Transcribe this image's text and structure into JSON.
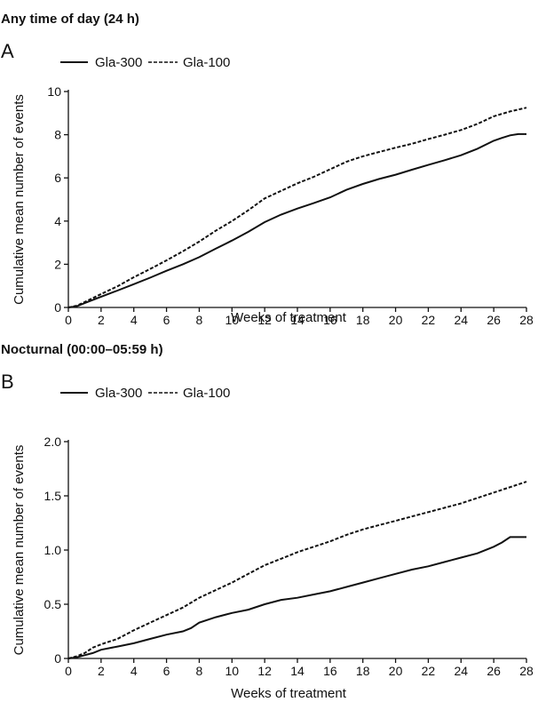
{
  "chart_data": [
    {
      "type": "line",
      "heading": "Any time of day (24 h)",
      "panel": "A",
      "xlabel": "Weeks of treatment",
      "ylabel": "Cumulative mean number of events",
      "xlim": [
        0,
        28
      ],
      "ylim": [
        0,
        10
      ],
      "xticks": [
        0,
        2,
        4,
        6,
        8,
        10,
        12,
        14,
        16,
        18,
        20,
        22,
        24,
        26,
        28
      ],
      "yticks": [
        0,
        2,
        4,
        6,
        8,
        10
      ],
      "ytick_labels": [
        "0",
        "2",
        "4",
        "6",
        "8",
        "10"
      ],
      "legend_position": "top-left",
      "grid": false,
      "series": [
        {
          "name": "Gla-300",
          "style": "solid",
          "x": [
            0,
            0.5,
            1,
            2,
            3,
            4,
            5,
            6,
            7,
            8,
            9,
            10,
            11,
            12,
            13,
            14,
            15,
            16,
            17,
            18,
            19,
            20,
            21,
            22,
            23,
            24,
            25,
            26,
            26.5,
            27,
            27.5,
            28
          ],
          "y": [
            0,
            0.05,
            0.2,
            0.5,
            0.78,
            1.08,
            1.38,
            1.7,
            2.0,
            2.33,
            2.72,
            3.1,
            3.5,
            3.95,
            4.3,
            4.58,
            4.83,
            5.1,
            5.45,
            5.72,
            5.95,
            6.15,
            6.38,
            6.6,
            6.82,
            7.05,
            7.35,
            7.72,
            7.85,
            7.97,
            8.03,
            8.03
          ]
        },
        {
          "name": "Gla-100",
          "style": "dashed",
          "x": [
            0,
            0.5,
            1,
            2,
            3,
            4,
            5,
            6,
            7,
            8,
            9,
            10,
            11,
            12,
            13,
            14,
            15,
            16,
            17,
            18,
            19,
            20,
            21,
            22,
            23,
            24,
            25,
            26,
            27,
            28
          ],
          "y": [
            0,
            0.08,
            0.25,
            0.62,
            0.98,
            1.4,
            1.78,
            2.18,
            2.6,
            3.05,
            3.55,
            4.0,
            4.5,
            5.05,
            5.4,
            5.75,
            6.05,
            6.4,
            6.75,
            7.0,
            7.2,
            7.4,
            7.58,
            7.8,
            8.0,
            8.22,
            8.5,
            8.85,
            9.08,
            9.25
          ]
        }
      ]
    },
    {
      "type": "line",
      "heading": "Nocturnal (00:00–05:59 h)",
      "panel": "B",
      "xlabel": "Weeks of treatment",
      "ylabel": "Cumulative mean number of events",
      "xlim": [
        0,
        28
      ],
      "ylim": [
        0,
        2
      ],
      "xticks": [
        0,
        2,
        4,
        6,
        8,
        10,
        12,
        14,
        16,
        18,
        20,
        22,
        24,
        26,
        28
      ],
      "yticks": [
        0,
        0.5,
        1,
        1.5,
        2
      ],
      "ytick_labels": [
        "0",
        "0.5",
        "1.0",
        "1.5",
        "2.0"
      ],
      "legend_position": "top-left",
      "grid": false,
      "series": [
        {
          "name": "Gla-300",
          "style": "solid",
          "x": [
            0,
            0.5,
            1,
            1.5,
            2,
            3,
            4,
            5,
            6,
            7,
            7.5,
            8,
            9,
            10,
            11,
            12,
            13,
            14,
            15,
            16,
            17,
            18,
            19,
            20,
            21,
            22,
            23,
            24,
            25,
            26,
            26.5,
            27,
            28
          ],
          "y": [
            0,
            0.01,
            0.03,
            0.05,
            0.08,
            0.11,
            0.14,
            0.18,
            0.22,
            0.25,
            0.28,
            0.33,
            0.38,
            0.42,
            0.45,
            0.5,
            0.54,
            0.56,
            0.59,
            0.62,
            0.66,
            0.7,
            0.74,
            0.78,
            0.82,
            0.85,
            0.89,
            0.93,
            0.97,
            1.03,
            1.07,
            1.12,
            1.12
          ]
        },
        {
          "name": "Gla-100",
          "style": "dashed",
          "x": [
            0,
            0.5,
            1,
            1.5,
            2,
            3,
            4,
            5,
            6,
            7,
            8,
            9,
            10,
            11,
            12,
            13,
            14,
            15,
            16,
            17,
            18,
            19,
            20,
            21,
            22,
            23,
            24,
            25,
            26,
            27,
            28
          ],
          "y": [
            0,
            0.02,
            0.05,
            0.1,
            0.13,
            0.18,
            0.26,
            0.33,
            0.4,
            0.47,
            0.56,
            0.63,
            0.7,
            0.78,
            0.86,
            0.92,
            0.98,
            1.03,
            1.08,
            1.14,
            1.19,
            1.23,
            1.27,
            1.31,
            1.35,
            1.39,
            1.43,
            1.48,
            1.53,
            1.58,
            1.63
          ]
        }
      ]
    }
  ]
}
